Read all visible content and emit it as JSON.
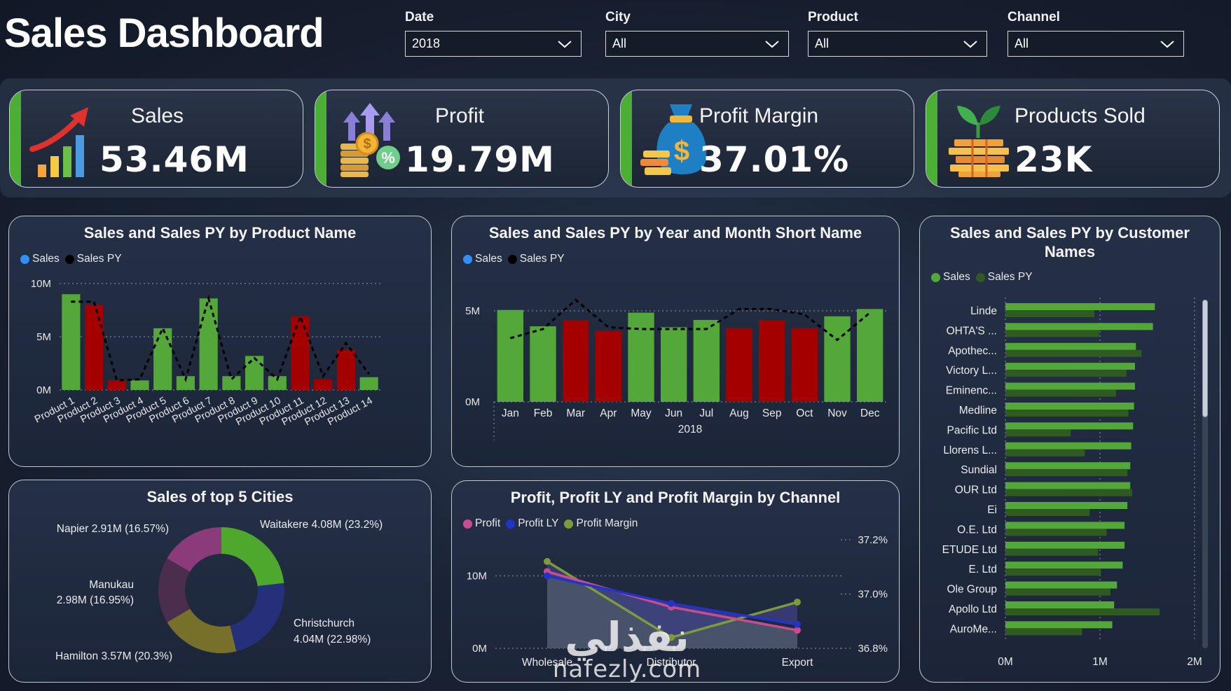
{
  "title": "Sales Dashboard",
  "filters": [
    {
      "label": "Date",
      "value": "2018"
    },
    {
      "label": "City",
      "value": "All"
    },
    {
      "label": "Product",
      "value": "All"
    },
    {
      "label": "Channel",
      "value": "All"
    }
  ],
  "kpis": [
    {
      "label": "Sales",
      "value": "53.46M",
      "icon": "rising-bar-chart-icon"
    },
    {
      "label": "Profit",
      "value": "19.79M",
      "icon": "coins-percent-icon"
    },
    {
      "label": "Profit Margin",
      "value": "37.01%",
      "icon": "money-bag-icon"
    },
    {
      "label": "Products Sold",
      "value": "23K",
      "icon": "plant-coins-icon"
    }
  ],
  "colors": {
    "green": "#54a83a",
    "red": "#a50000",
    "dark_green": "#2f5a22",
    "blue_dot": "#2f8fff",
    "black_dot": "#000000",
    "pink": "#c94d8e",
    "navy": "#2233cc",
    "olive": "#7d9b3a",
    "purple_area": "#3c3f7e"
  },
  "chart_data": [
    {
      "id": "product",
      "type": "bar",
      "title": "Sales and Sales PY by Product Name",
      "legend": [
        "Sales",
        "Sales PY"
      ],
      "categories": [
        "Product 1",
        "Product 2",
        "Product 3",
        "Product 4",
        "Product 5",
        "Product 6",
        "Product 7",
        "Product 8",
        "Product 9",
        "Product 10",
        "Product 11",
        "Product 12",
        "Product 13",
        "Product 14"
      ],
      "series": [
        {
          "name": "Sales",
          "values": [
            9.0,
            8.0,
            0.9,
            0.9,
            5.8,
            1.3,
            8.6,
            1.3,
            3.2,
            1.3,
            6.9,
            1.0,
            3.8,
            1.2
          ]
        },
        {
          "name": "Sales PY",
          "values": [
            8.3,
            8.3,
            0.9,
            1.0,
            5.8,
            1.0,
            8.6,
            1.0,
            3.0,
            1.0,
            6.9,
            1.3,
            4.4,
            1.5
          ]
        }
      ],
      "bar_colors": [
        "green",
        "red",
        "red",
        "green",
        "green",
        "green",
        "green",
        "green",
        "green",
        "green",
        "red",
        "red",
        "red",
        "green"
      ],
      "ytick_labels": [
        "0M",
        "5M",
        "10M"
      ],
      "yticks": [
        0,
        5,
        10
      ],
      "ylim": [
        0,
        10
      ]
    },
    {
      "id": "month",
      "type": "bar",
      "title": "Sales and Sales PY by Year and Month Short Name",
      "legend": [
        "Sales",
        "Sales PY"
      ],
      "categories": [
        "Jan",
        "Feb",
        "Mar",
        "Apr",
        "May",
        "Jun",
        "Jul",
        "Aug",
        "Sep",
        "Oct",
        "Nov",
        "Dec"
      ],
      "xlabel": "2018",
      "series": [
        {
          "name": "Sales",
          "values": [
            5.05,
            4.15,
            4.5,
            3.9,
            4.9,
            4.1,
            4.5,
            4.05,
            4.5,
            4.05,
            4.7,
            5.1
          ]
        },
        {
          "name": "Sales PY",
          "values": [
            3.5,
            4.0,
            5.6,
            4.1,
            4.0,
            4.0,
            4.0,
            5.1,
            5.1,
            4.8,
            3.4,
            4.9
          ]
        }
      ],
      "bar_colors": [
        "green",
        "green",
        "red",
        "red",
        "green",
        "green",
        "green",
        "red",
        "red",
        "red",
        "green",
        "green"
      ],
      "ytick_labels": [
        "0M",
        "5M"
      ],
      "yticks": [
        0,
        5
      ],
      "ylim": [
        0,
        6.5
      ]
    },
    {
      "id": "customers",
      "type": "bar",
      "title": "Sales and Sales PY by Customer Names",
      "legend": [
        "Sales",
        "Sales PY"
      ],
      "categories": [
        "Linde",
        "OHTA'S ...",
        "Apothec...",
        "Victory L...",
        "Eminenc...",
        "Medline",
        "Pacific Ltd",
        "Llorens L...",
        "Sundial",
        "OUR Ltd",
        "Ei",
        "O.E. Ltd",
        "ETUDE Ltd",
        "E. Ltd",
        "Ole Group",
        "Apollo Ltd",
        "AuroMe..."
      ],
      "series": [
        {
          "name": "Sales",
          "values": [
            1.58,
            1.56,
            1.38,
            1.37,
            1.37,
            1.36,
            1.35,
            1.33,
            1.32,
            1.32,
            1.29,
            1.26,
            1.26,
            1.24,
            1.18,
            1.15,
            1.13
          ]
        },
        {
          "name": "Sales PY",
          "values": [
            0.94,
            0.99,
            1.44,
            1.28,
            1.17,
            1.3,
            0.69,
            0.84,
            1.29,
            1.34,
            0.89,
            1.07,
            0.98,
            1.01,
            1.11,
            1.63,
            0.81
          ]
        }
      ],
      "xtick_labels": [
        "0M",
        "1M",
        "2M"
      ],
      "xticks": [
        0,
        1,
        2
      ],
      "xlim": [
        0,
        2
      ]
    },
    {
      "id": "cities",
      "type": "pie",
      "title": "Sales of top 5 Cities",
      "slices": [
        {
          "name": "Waitakere",
          "value": 4.08,
          "label": "Waitakere 4.08M (23.2%)",
          "color": "#4ea82e"
        },
        {
          "name": "Christchurch",
          "value": 4.04,
          "label_line1": "Christchurch",
          "label_line2": "4.04M (22.98%)",
          "color": "#262f7a"
        },
        {
          "name": "Hamilton",
          "value": 3.57,
          "label": "Hamilton 3.57M (20.3%)",
          "color": "#77702a"
        },
        {
          "name": "Manukau",
          "value": 2.98,
          "label_line1": "Manukau",
          "label_line2": "2.98M (16.95%)",
          "color": "#4b2d4d"
        },
        {
          "name": "Napier",
          "value": 2.91,
          "label": "Napier 2.91M (16.57%)",
          "color": "#8b3b7a"
        }
      ]
    },
    {
      "id": "channel",
      "type": "line",
      "title": "Profit, Profit LY and Profit Margin by Channel",
      "legend": [
        "Profit",
        "Profit LY",
        "Profit Margin"
      ],
      "categories": [
        "Wholesale",
        "Distributor",
        "Export"
      ],
      "series": [
        {
          "name": "Profit",
          "values": [
            10.6,
            5.7,
            2.5
          ]
        },
        {
          "name": "Profit LY",
          "values": [
            10.0,
            6.2,
            3.3
          ]
        },
        {
          "name": "Profit Margin",
          "values": [
            37.12,
            36.84,
            36.97
          ]
        }
      ],
      "ytick_labels": [
        "0M",
        "10M"
      ],
      "yticks": [
        0,
        10
      ],
      "ylim": [
        0,
        15
      ],
      "y2tick_labels": [
        "36.8%",
        "37.0%",
        "37.2%"
      ],
      "y2ticks": [
        36.8,
        37.0,
        37.2
      ],
      "y2lim": [
        36.8,
        37.2
      ]
    }
  ],
  "watermark": {
    "arabic": "نفذلي",
    "url": "nafezly.com"
  }
}
